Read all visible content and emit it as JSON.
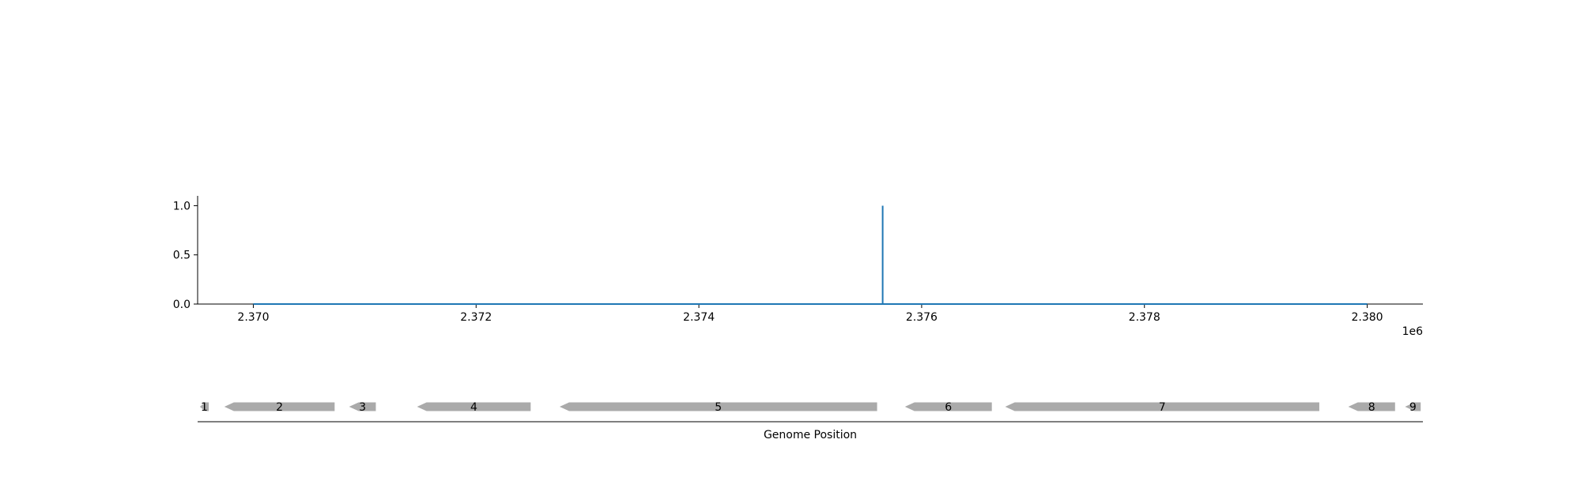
{
  "chart_data": [
    {
      "type": "line",
      "title": "",
      "xlabel": "",
      "ylabel": "",
      "x_offset_label": "1e6",
      "xlim": [
        2369500,
        2380500
      ],
      "ylim": [
        0,
        1.1
      ],
      "xticks": [
        {
          "value": 2370000,
          "label": "2.370"
        },
        {
          "value": 2372000,
          "label": "2.372"
        },
        {
          "value": 2374000,
          "label": "2.374"
        },
        {
          "value": 2376000,
          "label": "2.376"
        },
        {
          "value": 2378000,
          "label": "2.378"
        },
        {
          "value": 2380000,
          "label": "2.380"
        }
      ],
      "yticks": [
        {
          "value": 0.0,
          "label": "0.0"
        },
        {
          "value": 0.5,
          "label": "0.5"
        },
        {
          "value": 1.0,
          "label": "1.0"
        }
      ],
      "line_color": "#1f77b4",
      "grid": false,
      "series": [
        {
          "x": [
            2370000,
            2375650,
            2375650,
            2375650,
            2380000
          ],
          "y": [
            0,
            0,
            1.0,
            0,
            0
          ]
        }
      ]
    },
    {
      "type": "gene_track",
      "xlabel": "Genome Position",
      "xlim": [
        2369500,
        2380500
      ],
      "gene_color": "#aaaaaa",
      "genes": [
        {
          "label": "1",
          "start": 2369520,
          "end": 2369600,
          "strand": "-"
        },
        {
          "label": "2",
          "start": 2369740,
          "end": 2370730,
          "strand": "-"
        },
        {
          "label": "3",
          "start": 2370860,
          "end": 2371100,
          "strand": "-"
        },
        {
          "label": "4",
          "start": 2371470,
          "end": 2372490,
          "strand": "-"
        },
        {
          "label": "5",
          "start": 2372750,
          "end": 2375600,
          "strand": "-"
        },
        {
          "label": "6",
          "start": 2375850,
          "end": 2376630,
          "strand": "-"
        },
        {
          "label": "7",
          "start": 2376750,
          "end": 2379570,
          "strand": "-"
        },
        {
          "label": "8",
          "start": 2379830,
          "end": 2380250,
          "strand": "-"
        },
        {
          "label": "9",
          "start": 2380340,
          "end": 2380480,
          "strand": "-"
        }
      ]
    }
  ]
}
